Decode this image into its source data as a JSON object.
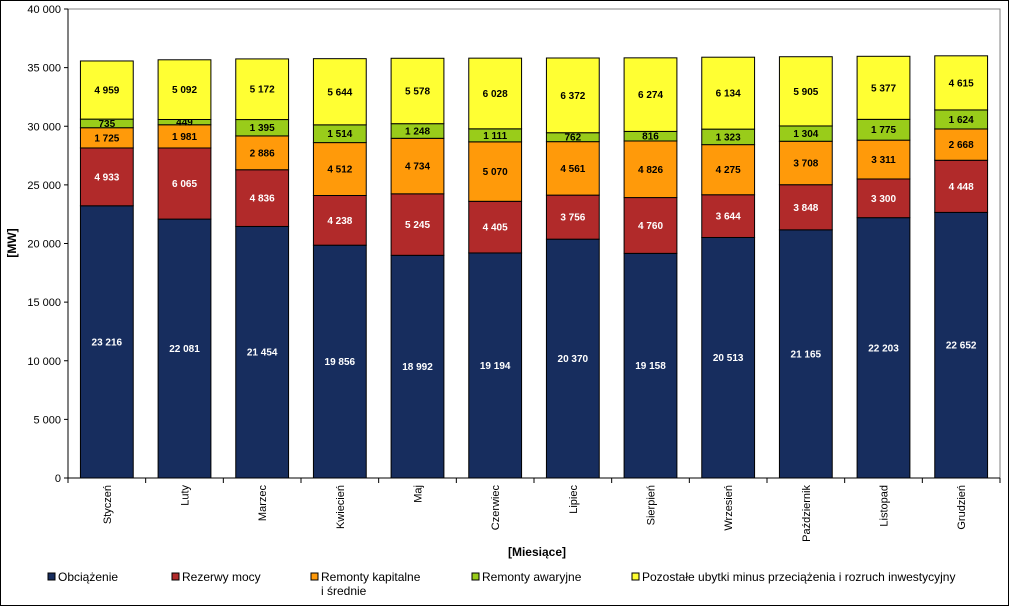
{
  "chart_data": {
    "type": "bar",
    "stacked": true,
    "categories": [
      "Styczeń",
      "Luty",
      "Marzec",
      "Kwiecień",
      "Maj",
      "Czerwiec",
      "Lipiec",
      "Sierpień",
      "Wrzesień",
      "Październik",
      "Listopad",
      "Grudzień"
    ],
    "series": [
      {
        "name": "Obciążenie",
        "color": "#172d5e",
        "label_color": "#ffffff",
        "values": [
          23216,
          22081,
          21454,
          19856,
          18992,
          19194,
          20370,
          19158,
          20513,
          21165,
          22203,
          22652
        ]
      },
      {
        "name": "Rezerwy mocy",
        "color": "#b12a2a",
        "label_color": "#ffffff",
        "values": [
          4933,
          6065,
          4836,
          4238,
          5245,
          4405,
          3756,
          4760,
          3644,
          3848,
          3300,
          4448
        ]
      },
      {
        "name": "Remonty kapitalne i średnie",
        "color": "#ff9a0a",
        "label_color": "#000000",
        "values": [
          1725,
          1981,
          2886,
          4512,
          4734,
          5070,
          4561,
          4826,
          4275,
          3708,
          3311,
          2668
        ]
      },
      {
        "name": "Remonty awaryjne",
        "color": "#99cc1a",
        "label_color": "#000000",
        "values": [
          735,
          449,
          1395,
          1514,
          1248,
          1111,
          762,
          816,
          1323,
          1304,
          1775,
          1624
        ]
      },
      {
        "name": "Pozostałe ubytki minus przeciążenia i rozruch inwestycyjny",
        "color": "#ffff33",
        "label_color": "#000000",
        "values": [
          4959,
          5092,
          5172,
          5644,
          5578,
          6028,
          6372,
          6274,
          6134,
          5905,
          5377,
          4615
        ]
      }
    ],
    "labels": [
      [
        "23 216",
        "22 081",
        "21 454",
        "19 856",
        "18 992",
        "19 194",
        "20 370",
        "19 158",
        "20 513",
        "21 165",
        "22 203",
        "22 652"
      ],
      [
        "4 933",
        "6 065",
        "4 836",
        "4 238",
        "5 245",
        "4 405",
        "3 756",
        "4 760",
        "3 644",
        "3 848",
        "3 300",
        "4 448"
      ],
      [
        "1 725",
        "1 981",
        "2 886",
        "4 512",
        "4 734",
        "5 070",
        "4 561",
        "4 826",
        "4 275",
        "3 708",
        "3 311",
        "2 668"
      ],
      [
        "735",
        "449",
        "1 395",
        "1 514",
        "1 248",
        "1 111",
        "762",
        "816",
        "1 323",
        "1 304",
        "1 775",
        "1 624"
      ],
      [
        "4 959",
        "5 092",
        "5 172",
        "5 644",
        "5 578",
        "6 028",
        "6 372",
        "6 274",
        "6 134",
        "5 905",
        "5 377",
        "4 615"
      ]
    ],
    "legend_labels": [
      "Obciążenie",
      "Rezerwy mocy",
      "Remonty kapitalne",
      "i średnie",
      "Remonty awaryjne",
      "Pozostałe ubytki minus przeciążenia i rozruch inwestycyjny"
    ],
    "yticks": [
      0,
      5000,
      10000,
      15000,
      20000,
      25000,
      30000,
      35000,
      40000
    ],
    "ytick_labels": [
      "0",
      "5 000",
      "10 000",
      "15 000",
      "20 000",
      "25 000",
      "30 000",
      "35 000",
      "40 000"
    ],
    "ylim": [
      0,
      40000
    ],
    "ylabel": "[MW]",
    "xlabel": "[Miesiące]",
    "title": "",
    "grid": false,
    "legend_position": "bottom"
  }
}
